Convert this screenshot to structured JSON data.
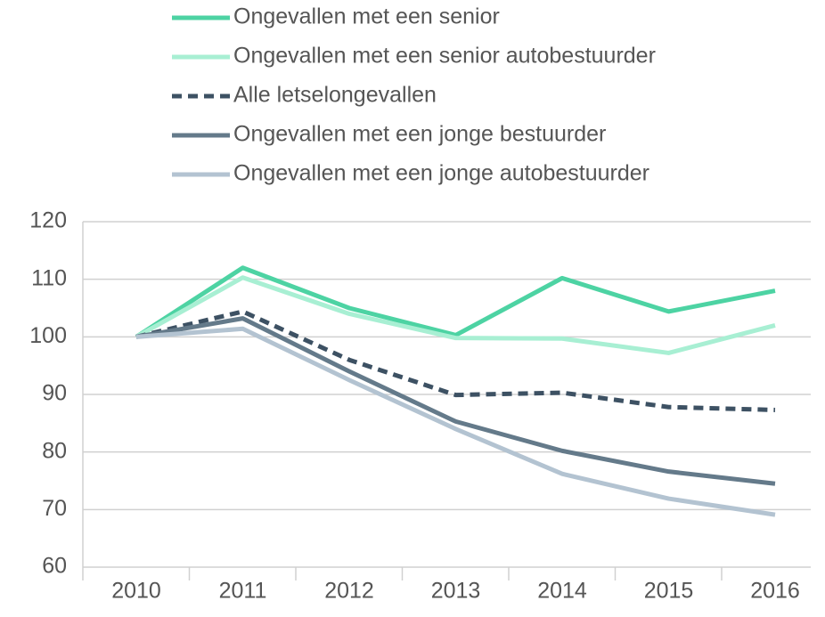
{
  "chart_data": {
    "type": "line",
    "categories": [
      "2010",
      "2011",
      "2012",
      "2013",
      "2014",
      "2015",
      "2016"
    ],
    "series": [
      {
        "name": "Ongevallen met een senior",
        "color": "#4dd3a3",
        "dash": false,
        "values": [
          100,
          112,
          105,
          100.3,
          110.2,
          104.4,
          108
        ]
      },
      {
        "name": "Ongevallen met een senior autobestuurder",
        "color": "#a8efd3",
        "dash": false,
        "values": [
          100,
          110.3,
          104,
          99.8,
          99.7,
          97.2,
          102
        ]
      },
      {
        "name": "Alle letselongevallen",
        "color": "#3d5163",
        "dash": true,
        "values": [
          100,
          104.4,
          96,
          89.9,
          90.3,
          87.8,
          87.3
        ]
      },
      {
        "name": "Ongevallen met een jonge bestuurder",
        "color": "#647a8a",
        "dash": false,
        "values": [
          100,
          103.2,
          94,
          85.3,
          80.2,
          76.6,
          74.5
        ]
      },
      {
        "name": "Ongevallen met een jonge autobestuurder",
        "color": "#b3c3d1",
        "dash": false,
        "values": [
          100,
          101.4,
          92.5,
          84,
          76.2,
          71.9,
          69.1
        ]
      }
    ],
    "ylim": [
      60,
      120
    ],
    "yticks": [
      60,
      70,
      80,
      90,
      100,
      110,
      120
    ],
    "grid": true,
    "legend": "top"
  }
}
